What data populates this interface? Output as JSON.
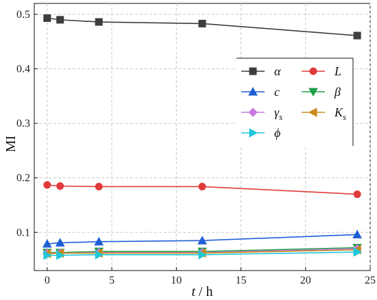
{
  "chart_data": {
    "type": "line",
    "xlabel": "t / h",
    "ylabel": "MI",
    "xlim": [
      -1,
      25
    ],
    "ylim": [
      0.03,
      0.52
    ],
    "xticks": [
      0,
      5,
      10,
      15,
      20,
      25
    ],
    "yticks": [
      0.1,
      0.2,
      0.3,
      0.4,
      0.5
    ],
    "grid": true,
    "legend_position": "top-right",
    "x": [
      0,
      1,
      4,
      12,
      24
    ],
    "series": [
      {
        "name": "α",
        "sub": "",
        "color": "#3d3d3d",
        "marker": "square",
        "values": [
          0.493,
          0.49,
          0.486,
          0.483,
          0.461
        ]
      },
      {
        "name": "L",
        "sub": "",
        "color": "#e03a3a",
        "marker": "circle",
        "values": [
          0.187,
          0.185,
          0.184,
          0.184,
          0.17
        ]
      },
      {
        "name": "c",
        "sub": "",
        "color": "#1f5fd6",
        "marker": "triangle-up",
        "values": [
          0.079,
          0.081,
          0.083,
          0.085,
          0.096
        ]
      },
      {
        "name": "β",
        "sub": "",
        "color": "#1f9e4a",
        "marker": "triangle-down",
        "values": [
          0.063,
          0.063,
          0.065,
          0.065,
          0.072
        ]
      },
      {
        "name": "γ",
        "sub": "s",
        "color": "#c77be0",
        "marker": "diamond",
        "values": [
          0.062,
          0.062,
          0.063,
          0.063,
          0.07
        ]
      },
      {
        "name": "K",
        "sub": "s",
        "color": "#c88a1a",
        "marker": "triangle-left",
        "values": [
          0.061,
          0.062,
          0.062,
          0.062,
          0.068
        ]
      },
      {
        "name": "ϕ",
        "sub": "",
        "color": "#22c6d8",
        "marker": "triangle-right",
        "values": [
          0.058,
          0.058,
          0.059,
          0.059,
          0.064
        ]
      }
    ]
  }
}
